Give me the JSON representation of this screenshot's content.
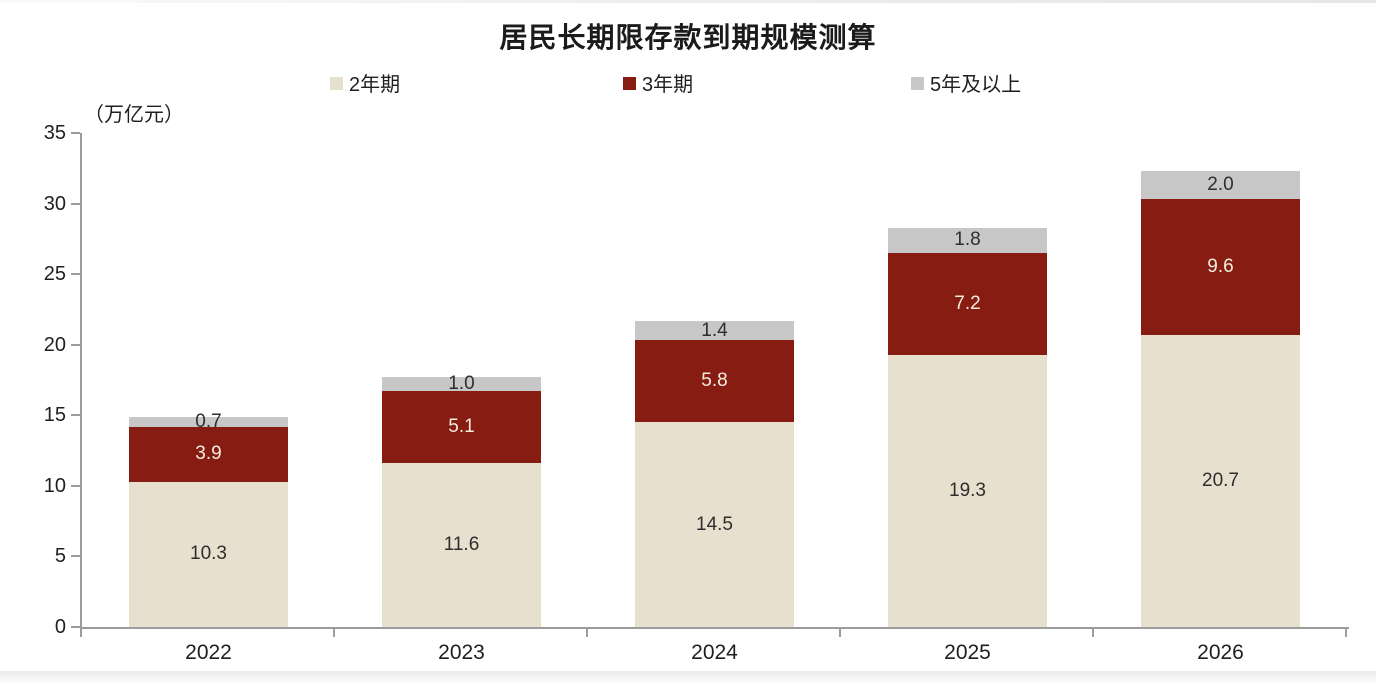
{
  "chart_data": {
    "type": "bar",
    "stacked": true,
    "title": "居民长期限存款到期规模测算",
    "unit_label": "（万亿元）",
    "categories": [
      "2022",
      "2023",
      "2024",
      "2025",
      "2026"
    ],
    "series": [
      {
        "name": "2年期",
        "color": "#E7E0CE",
        "label_color": "#2E2E2E",
        "values": [
          10.3,
          11.6,
          14.5,
          19.3,
          20.7
        ]
      },
      {
        "name": "3年期",
        "color": "#871D12",
        "label_color": "#F4EDDE",
        "values": [
          3.9,
          5.1,
          5.8,
          7.2,
          9.6
        ]
      },
      {
        "name": "5年及以上",
        "color": "#C7C7C7",
        "label_color": "#2E2E2E",
        "values": [
          0.7,
          1.0,
          1.4,
          1.8,
          2.0
        ]
      }
    ],
    "totals": [
      14.9,
      17.7,
      21.7,
      28.3,
      32.3
    ],
    "ylim": [
      0,
      35
    ],
    "yticks": [
      0,
      5,
      10,
      15,
      20,
      25,
      30,
      35
    ],
    "legend_position": "top",
    "grid": false,
    "axis_color": "#9C9C9C",
    "text_color": "#1F1F1F"
  }
}
